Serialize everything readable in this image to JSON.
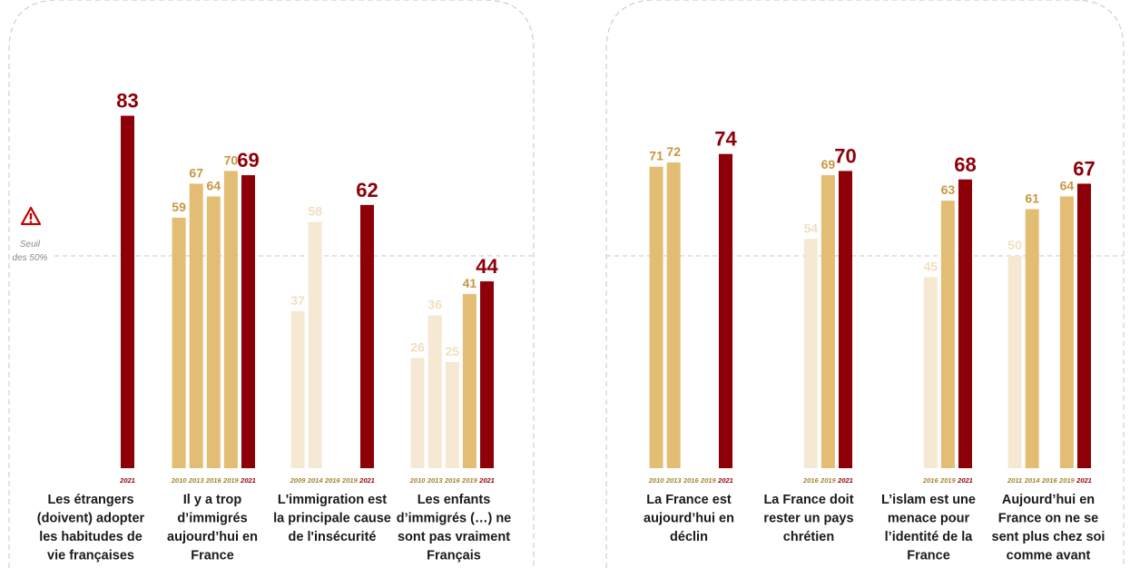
{
  "colors": {
    "latest": "#8e0008",
    "mid": "#e3bd74",
    "light": "#f6e9d3",
    "value_mid_text": "#c9973f",
    "value_light_text": "#f1dfbe",
    "year_text": "#a3822f",
    "year_latest_text": "#8e0008",
    "panel_border": "#cfcfcf",
    "threshold_line": "#c9c9c9"
  },
  "threshold": {
    "value": 50,
    "label_lines": [
      "Seuil",
      "des 50%"
    ],
    "icon": "warning-triangle-icon"
  },
  "chart_data": [
    {
      "type": "bar",
      "panel": "left",
      "ylim": [
        0,
        100
      ],
      "groups": [
        {
          "label_lines": [
            "Les étrangers",
            "(doivent) adopter",
            "les habitudes de",
            "vie françaises"
          ],
          "bars": [
            {
              "year": "2021",
              "value": 83,
              "shade": "latest"
            }
          ]
        },
        {
          "label_lines": [
            "Il y a trop",
            "d’immigrés",
            "aujourd’hui en",
            "France"
          ],
          "bars": [
            {
              "year": "2010",
              "value": 59,
              "shade": "mid"
            },
            {
              "year": "2013",
              "value": 67,
              "shade": "mid"
            },
            {
              "year": "2016",
              "value": 64,
              "shade": "mid"
            },
            {
              "year": "2019",
              "value": 70,
              "shade": "mid"
            },
            {
              "year": "2021",
              "value": 69,
              "shade": "latest"
            }
          ]
        },
        {
          "label_lines": [
            "L'immigration est",
            "la principale cause",
            "de l'insécurité"
          ],
          "bars": [
            {
              "year": "2009",
              "value": 37,
              "shade": "light"
            },
            {
              "year": "2014",
              "value": 58,
              "shade": "light"
            },
            {
              "year": "2016",
              "value": null,
              "shade": "light"
            },
            {
              "year": "2019",
              "value": null,
              "shade": "light"
            },
            {
              "year": "2021",
              "value": 62,
              "shade": "latest"
            }
          ]
        },
        {
          "label_lines": [
            "Les enfants",
            "d’immigrés (…) ne",
            "sont pas vraiment",
            "Français"
          ],
          "bars": [
            {
              "year": "2010",
              "value": 26,
              "shade": "light"
            },
            {
              "year": "2013",
              "value": 36,
              "shade": "light"
            },
            {
              "year": "2016",
              "value": 25,
              "shade": "light"
            },
            {
              "year": "2019",
              "value": 41,
              "shade": "mid"
            },
            {
              "year": "2021",
              "value": 44,
              "shade": "latest"
            }
          ]
        }
      ]
    },
    {
      "type": "bar",
      "panel": "right",
      "ylim": [
        0,
        100
      ],
      "groups": [
        {
          "label_lines": [
            "La France est",
            "aujourd’hui en",
            "déclin"
          ],
          "bars": [
            {
              "year": "2010",
              "value": 71,
              "shade": "mid"
            },
            {
              "year": "2013",
              "value": 72,
              "shade": "mid"
            },
            {
              "year": "2016",
              "value": null,
              "shade": "mid"
            },
            {
              "year": "2019",
              "value": null,
              "shade": "mid"
            },
            {
              "year": "2021",
              "value": 74,
              "shade": "latest"
            }
          ]
        },
        {
          "label_lines": [
            "La France doit",
            "rester un pays",
            "chrétien"
          ],
          "bars": [
            {
              "year": "2016",
              "value": 54,
              "shade": "light"
            },
            {
              "year": "2019",
              "value": 69,
              "shade": "mid"
            },
            {
              "year": "2021",
              "value": 70,
              "shade": "latest"
            }
          ]
        },
        {
          "label_lines": [
            "L’islam est une",
            "menace pour",
            "l’identité de la",
            "France"
          ],
          "bars": [
            {
              "year": "2016",
              "value": 45,
              "shade": "light"
            },
            {
              "year": "2019",
              "value": 63,
              "shade": "mid"
            },
            {
              "year": "2021",
              "value": 68,
              "shade": "latest"
            }
          ]
        },
        {
          "label_lines": [
            "Aujourd’hui en",
            "France on ne se",
            "sent plus chez soi",
            "comme avant"
          ],
          "bars": [
            {
              "year": "2011",
              "value": 50,
              "shade": "light"
            },
            {
              "year": "2014",
              "value": 61,
              "shade": "mid"
            },
            {
              "year": "2016",
              "value": null,
              "shade": "mid"
            },
            {
              "year": "2019",
              "value": 64,
              "shade": "mid"
            },
            {
              "year": "2021",
              "value": 67,
              "shade": "latest"
            }
          ]
        }
      ]
    }
  ]
}
